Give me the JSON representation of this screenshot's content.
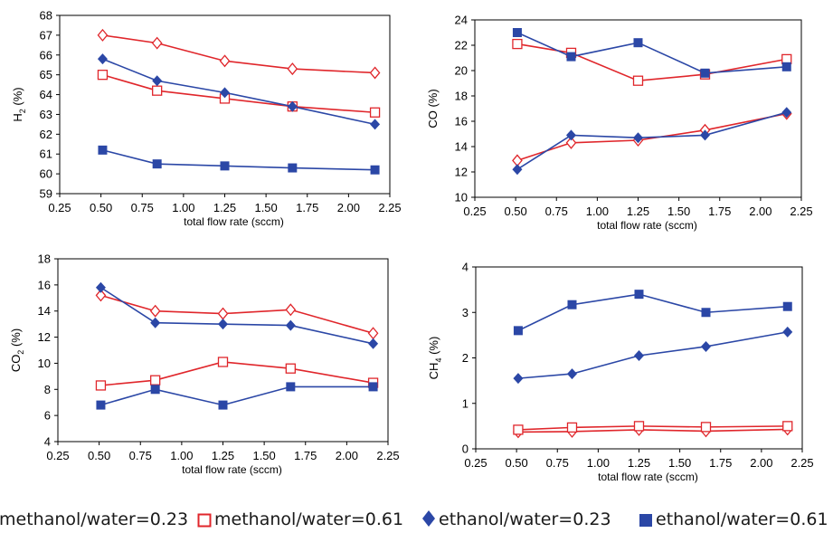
{
  "colors": {
    "red": "#e0262b",
    "blue": "#2b47a6",
    "axis": "#000000",
    "text": "#000000"
  },
  "legend": {
    "items": [
      {
        "label": "methanol/water=0.23",
        "marker": "diamond-open",
        "color": "#e0262b"
      },
      {
        "label": "methanol/water=0.61",
        "marker": "square-open",
        "color": "#e0262b"
      },
      {
        "label": "ethanol/water=0.23",
        "marker": "diamond-filled",
        "color": "#2b47a6"
      },
      {
        "label": "ethanol/water=0.61",
        "marker": "square-filled",
        "color": "#2b47a6"
      }
    ]
  },
  "chart_data": [
    {
      "type": "line",
      "ylabel_main": "H",
      "ylabel_sub": "2",
      "ylabel_tail": " (%)",
      "xlabel": "total flow rate (sccm)",
      "x": [
        0.51,
        0.84,
        1.25,
        1.66,
        2.16
      ],
      "xlim": [
        0.25,
        2.25
      ],
      "xticks": [
        "0.25",
        "0.50",
        "0.75",
        "1.00",
        "1.25",
        "1.50",
        "1.75",
        "2.00",
        "2.25"
      ],
      "ylim": [
        59,
        68
      ],
      "yticks": [
        "59",
        "60",
        "61",
        "62",
        "63",
        "64",
        "65",
        "66",
        "67",
        "68"
      ],
      "grid": false,
      "series": [
        {
          "values": [
            67.0,
            66.6,
            65.7,
            65.3,
            65.1
          ],
          "color": "#e0262b",
          "marker": "diamond-open"
        },
        {
          "values": [
            65.0,
            64.2,
            63.8,
            63.4,
            63.1
          ],
          "color": "#e0262b",
          "marker": "square-open"
        },
        {
          "values": [
            65.8,
            64.7,
            64.1,
            63.4,
            62.5
          ],
          "color": "#2b47a6",
          "marker": "diamond-filled"
        },
        {
          "values": [
            61.2,
            60.5,
            60.4,
            60.3,
            60.2
          ],
          "color": "#2b47a6",
          "marker": "square-filled"
        }
      ]
    },
    {
      "type": "line",
      "ylabel_main": "CO",
      "ylabel_sub": "",
      "ylabel_tail": " (%)",
      "xlabel": "total flow rate (sccm)",
      "x": [
        0.51,
        0.84,
        1.25,
        1.66,
        2.16
      ],
      "xlim": [
        0.25,
        2.25
      ],
      "xticks": [
        "0.25",
        "0.50",
        "0.75",
        "1.00",
        "1.25",
        "1.50",
        "1.75",
        "2.00",
        "2.25"
      ],
      "ylim": [
        10,
        24
      ],
      "yticks": [
        "10",
        "12",
        "14",
        "16",
        "18",
        "20",
        "22",
        "24"
      ],
      "grid": false,
      "series": [
        {
          "values": [
            12.9,
            14.3,
            14.5,
            15.3,
            16.6
          ],
          "color": "#e0262b",
          "marker": "diamond-open"
        },
        {
          "values": [
            22.1,
            21.4,
            19.2,
            19.7,
            20.9
          ],
          "color": "#e0262b",
          "marker": "square-open"
        },
        {
          "values": [
            12.2,
            14.9,
            14.7,
            14.9,
            16.7
          ],
          "color": "#2b47a6",
          "marker": "diamond-filled"
        },
        {
          "values": [
            23.0,
            21.1,
            22.2,
            19.8,
            20.3
          ],
          "color": "#2b47a6",
          "marker": "square-filled"
        }
      ]
    },
    {
      "type": "line",
      "ylabel_main": "CO",
      "ylabel_sub": "2",
      "ylabel_tail": " (%)",
      "xlabel": "total flow rate (sccm)",
      "x": [
        0.51,
        0.84,
        1.25,
        1.66,
        2.16
      ],
      "xlim": [
        0.25,
        2.25
      ],
      "xticks": [
        "0.25",
        "0.50",
        "0.75",
        "1.00",
        "1.25",
        "1.50",
        "1.75",
        "2.00",
        "2.25"
      ],
      "ylim": [
        4,
        18
      ],
      "yticks": [
        "4",
        "6",
        "8",
        "10",
        "12",
        "14",
        "16",
        "18"
      ],
      "grid": false,
      "series": [
        {
          "values": [
            15.2,
            14.0,
            13.8,
            14.1,
            12.3
          ],
          "color": "#e0262b",
          "marker": "diamond-open"
        },
        {
          "values": [
            8.3,
            8.7,
            10.1,
            9.6,
            8.5
          ],
          "color": "#e0262b",
          "marker": "square-open"
        },
        {
          "values": [
            15.8,
            13.1,
            13.0,
            12.9,
            11.5
          ],
          "color": "#2b47a6",
          "marker": "diamond-filled"
        },
        {
          "values": [
            6.8,
            8.0,
            6.8,
            8.2,
            8.2
          ],
          "color": "#2b47a6",
          "marker": "square-filled"
        }
      ]
    },
    {
      "type": "line",
      "ylabel_main": "CH",
      "ylabel_sub": "4",
      "ylabel_tail": " (%)",
      "xlabel": "total flow rate (sccm)",
      "x": [
        0.51,
        0.84,
        1.25,
        1.66,
        2.16
      ],
      "xlim": [
        0.25,
        2.25
      ],
      "xticks": [
        "0.25",
        "0.50",
        "0.75",
        "1.00",
        "1.25",
        "1.50",
        "1.75",
        "2.00",
        "2.25"
      ],
      "ylim": [
        0,
        4
      ],
      "yticks": [
        "0",
        "1",
        "2",
        "3",
        "4"
      ],
      "grid": false,
      "series": [
        {
          "values": [
            0.37,
            0.38,
            0.42,
            0.39,
            0.43
          ],
          "color": "#e0262b",
          "marker": "diamond-open"
        },
        {
          "values": [
            0.42,
            0.47,
            0.5,
            0.48,
            0.5
          ],
          "color": "#e0262b",
          "marker": "square-open"
        },
        {
          "values": [
            1.55,
            1.65,
            2.05,
            2.25,
            2.57
          ],
          "color": "#2b47a6",
          "marker": "diamond-filled"
        },
        {
          "values": [
            2.6,
            3.17,
            3.4,
            3.0,
            3.13
          ],
          "color": "#2b47a6",
          "marker": "square-filled"
        }
      ]
    }
  ]
}
